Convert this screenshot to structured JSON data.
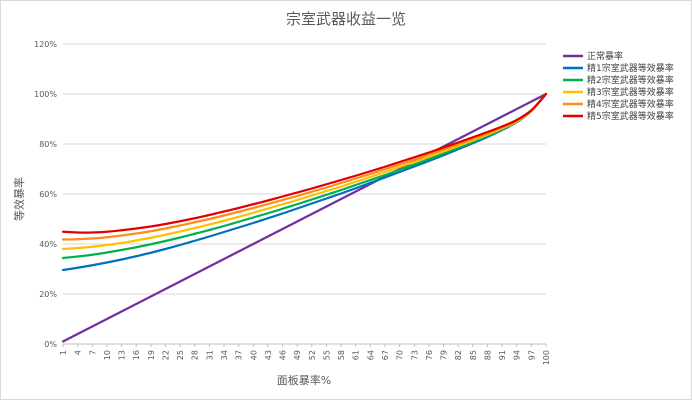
{
  "chart_data": {
    "type": "line",
    "title": "宗室武器收益一览",
    "xlabel": "面板暴率%",
    "ylabel": "等效暴率",
    "x": [
      1,
      4,
      7,
      10,
      13,
      16,
      19,
      22,
      25,
      28,
      31,
      34,
      37,
      40,
      43,
      46,
      49,
      52,
      55,
      58,
      61,
      64,
      67,
      70,
      73,
      76,
      79,
      82,
      85,
      88,
      91,
      94,
      97,
      100
    ],
    "x_tick_labels": [
      "1",
      "4",
      "7",
      "10",
      "13",
      "16",
      "19",
      "22",
      "25",
      "28",
      "31",
      "34",
      "37",
      "40",
      "43",
      "46",
      "49",
      "52",
      "55",
      "58",
      "61",
      "64",
      "67",
      "70",
      "73",
      "76",
      "79",
      "82",
      "85",
      "88",
      "91",
      "94",
      "97",
      "100"
    ],
    "xlim": [
      1,
      100
    ],
    "ylim": [
      0,
      120
    ],
    "y_ticks": [
      0,
      20,
      40,
      60,
      80,
      100,
      120
    ],
    "y_tick_labels": [
      "0%",
      "20%",
      "40%",
      "60%",
      "80%",
      "100%",
      "120%"
    ],
    "grid": "horizontal",
    "legend_position": "right",
    "series": [
      {
        "name": "正常暴率",
        "color": "#7030a0",
        "values": [
          1,
          4,
          7,
          10,
          13,
          16,
          19,
          22,
          25,
          28,
          31,
          34,
          37,
          40,
          43,
          46,
          49,
          52,
          55,
          58,
          61,
          64,
          67,
          70,
          73,
          76,
          79,
          82,
          85,
          88,
          91,
          94,
          97,
          100
        ]
      },
      {
        "name": "精1宗室武器等效暴率",
        "color": "#0070c0",
        "values": [
          29.6,
          30.5,
          31.5,
          32.6,
          33.8,
          35.1,
          36.5,
          38.0,
          39.6,
          41.3,
          43.0,
          44.8,
          46.6,
          48.4,
          50.3,
          52.2,
          54.2,
          56.2,
          58.2,
          60.2,
          62.3,
          64.5,
          66.6,
          68.8,
          71.0,
          73.2,
          75.5,
          77.9,
          80.3,
          82.8,
          85.6,
          88.7,
          93.2,
          100
        ]
      },
      {
        "name": "精2宗室武器等效暴率",
        "color": "#00b050",
        "values": [
          34.4,
          35.0,
          35.7,
          36.6,
          37.6,
          38.7,
          39.9,
          41.2,
          42.6,
          44.1,
          45.6,
          47.2,
          48.9,
          50.6,
          52.3,
          54.1,
          55.9,
          57.8,
          59.7,
          61.6,
          63.6,
          65.6,
          67.6,
          69.7,
          71.8,
          74.0,
          76.2,
          78.5,
          80.8,
          83.2,
          85.8,
          88.8,
          93.2,
          100
        ]
      },
      {
        "name": "精3宗室武器等效暴率",
        "color": "#ffc000",
        "values": [
          38.0,
          38.4,
          38.9,
          39.6,
          40.4,
          41.4,
          42.5,
          43.7,
          45.0,
          46.4,
          47.8,
          49.3,
          50.9,
          52.5,
          54.2,
          55.9,
          57.6,
          59.4,
          61.2,
          63.0,
          64.9,
          66.8,
          68.8,
          70.8,
          72.8,
          74.9,
          77.0,
          79.2,
          81.4,
          83.7,
          86.2,
          89.0,
          93.3,
          100
        ]
      },
      {
        "name": "精4宗室武器等效暴率",
        "color": "#ff8c1a",
        "values": [
          41.8,
          41.9,
          42.2,
          42.7,
          43.4,
          44.2,
          45.1,
          46.2,
          47.4,
          48.7,
          50.0,
          51.4,
          52.9,
          54.4,
          56.0,
          57.6,
          59.2,
          60.9,
          62.6,
          64.4,
          66.2,
          68.0,
          69.9,
          71.8,
          73.8,
          75.8,
          77.8,
          79.9,
          82.0,
          84.2,
          86.6,
          89.3,
          93.4,
          100
        ]
      },
      {
        "name": "精5宗室武器等效暴率",
        "color": "#e00000",
        "values": [
          44.9,
          44.6,
          44.6,
          44.9,
          45.5,
          46.2,
          47.0,
          48.0,
          49.1,
          50.3,
          51.6,
          53.0,
          54.4,
          55.9,
          57.4,
          59.0,
          60.6,
          62.2,
          63.9,
          65.6,
          67.3,
          69.1,
          70.9,
          72.8,
          74.7,
          76.6,
          78.6,
          80.6,
          82.7,
          84.8,
          87.0,
          89.6,
          93.5,
          100
        ]
      }
    ]
  }
}
